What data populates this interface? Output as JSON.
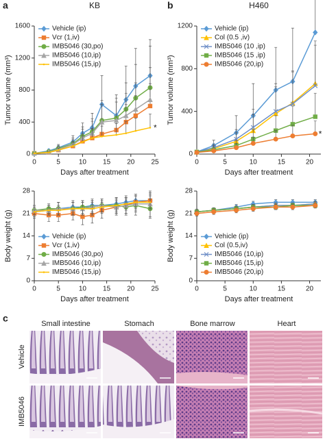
{
  "chart_data": [
    {
      "type": "line",
      "title": "KB",
      "xlabel": "Days after treatment",
      "ylabel": "Tumor volume (mm³)",
      "x": [
        0,
        3,
        5,
        8,
        10,
        12,
        14,
        17,
        19,
        21,
        24
      ],
      "xlim": [
        0,
        25
      ],
      "xticks": [
        0,
        5,
        10,
        15,
        20,
        25
      ],
      "ylim": [
        0,
        1600
      ],
      "yticks": [
        0,
        400,
        800,
        1200,
        1600
      ],
      "legend": "upper left",
      "error_bars": "upper",
      "annotation": "*",
      "series": [
        {
          "name": "Vehicle (ip)",
          "color": "#5b9bd5",
          "marker": "diamond",
          "values": [
            10,
            40,
            80,
            150,
            260,
            330,
            620,
            480,
            680,
            850,
            980
          ],
          "errors": [
            5,
            20,
            40,
            80,
            130,
            180,
            360,
            260,
            420,
            470,
            450
          ]
        },
        {
          "name": "Vcr (1,iv)",
          "color": "#ed7d31",
          "marker": "square",
          "values": [
            10,
            20,
            50,
            100,
            160,
            200,
            250,
            300,
            400,
            480,
            600
          ],
          "errors": [
            5,
            10,
            30,
            60,
            90,
            120,
            150,
            170,
            220,
            250,
            280
          ]
        },
        {
          "name": "IMB5046 (30,po)",
          "color": "#70ad47",
          "marker": "circle",
          "values": [
            10,
            30,
            70,
            130,
            220,
            280,
            420,
            450,
            560,
            700,
            830
          ],
          "errors": [
            5,
            15,
            35,
            70,
            120,
            160,
            250,
            250,
            330,
            420,
            520
          ]
        },
        {
          "name": "IMB5046 (10,ip)",
          "color": "#a5a5a5",
          "marker": "triangle",
          "values": [
            10,
            25,
            60,
            120,
            200,
            260,
            400,
            420,
            480,
            560,
            680
          ],
          "errors": [
            5,
            12,
            30,
            60,
            110,
            150,
            220,
            230,
            280,
            330,
            400
          ]
        },
        {
          "name": "IMB5046 (15,ip)",
          "color": "#ffc000",
          "marker": "none",
          "values": [
            10,
            20,
            50,
            100,
            150,
            200,
            220,
            240,
            260,
            290,
            330
          ],
          "errors": [
            5,
            10,
            25,
            50,
            80,
            110,
            130,
            140,
            150,
            160,
            170
          ]
        }
      ]
    },
    {
      "type": "line",
      "title": "H460",
      "xlabel": "Days after treatment",
      "ylabel": "Tumor volume (mm³)",
      "x": [
        0,
        3,
        7,
        10,
        14,
        17,
        21
      ],
      "xlim": [
        0,
        22
      ],
      "xticks": [
        0,
        5,
        10,
        15,
        20
      ],
      "ylim": [
        0,
        1200
      ],
      "yticks": [
        0,
        400,
        800,
        1200
      ],
      "legend": "upper left",
      "error_bars": "upper",
      "annotation": "*",
      "series": [
        {
          "name": "Vehicle (ip)",
          "color": "#5b9bd5",
          "marker": "diamond",
          "values": [
            20,
            80,
            200,
            360,
            600,
            680,
            1140
          ],
          "errors": [
            10,
            50,
            160,
            300,
            400,
            500,
            620
          ]
        },
        {
          "name": "Col (0.5 ,iv)",
          "color": "#ffc000",
          "marker": "triangle",
          "values": [
            20,
            50,
            120,
            220,
            380,
            480,
            660
          ],
          "errors": [
            10,
            30,
            80,
            150,
            250,
            300,
            400
          ]
        },
        {
          "name": "IMB5046 (10 ,ip)",
          "color": "#6f8fc7",
          "marker": "x",
          "values": [
            20,
            60,
            140,
            250,
            400,
            470,
            640
          ],
          "errors": [
            10,
            35,
            90,
            170,
            260,
            300,
            380
          ]
        },
        {
          "name": "IMB5046 (15 ,ip)",
          "color": "#70ad47",
          "marker": "square",
          "values": [
            20,
            40,
            80,
            140,
            220,
            280,
            350
          ],
          "errors": [
            10,
            25,
            50,
            90,
            140,
            170,
            220
          ]
        },
        {
          "name": "IMB5046 (20,ip)",
          "color": "#ed7d31",
          "marker": "circle",
          "values": [
            15,
            30,
            60,
            100,
            140,
            170,
            190
          ],
          "errors": [
            8,
            20,
            40,
            60,
            80,
            100,
            120
          ]
        }
      ]
    },
    {
      "type": "line",
      "xlabel": "Days after treatment",
      "ylabel": "Body weight (g)",
      "x": [
        0,
        3,
        5,
        8,
        10,
        12,
        14,
        17,
        19,
        21,
        24
      ],
      "xlim": [
        0,
        25
      ],
      "xticks": [
        0,
        5,
        10,
        15,
        20,
        25
      ],
      "ylim": [
        0,
        28
      ],
      "yticks": [
        0,
        7,
        14,
        21,
        28
      ],
      "legend": "lower left",
      "error_bars": "both",
      "series": [
        {
          "name": "Vehicle (ip)",
          "color": "#5b9bd5",
          "marker": "diamond",
          "values": [
            21.5,
            22,
            22.5,
            23,
            23,
            23.5,
            23.5,
            24,
            24.5,
            25,
            25
          ],
          "errors": [
            1.5,
            1.5,
            2,
            2,
            2,
            2,
            2,
            2,
            2,
            2,
            2
          ]
        },
        {
          "name": "Vcr (1,iv)",
          "color": "#ed7d31",
          "marker": "square",
          "values": [
            21,
            20.5,
            20.5,
            21,
            20,
            20.5,
            22,
            23,
            23.5,
            24.5,
            25
          ],
          "errors": [
            1.5,
            2,
            2,
            2,
            2.5,
            2.5,
            2.5,
            2.5,
            2.5,
            2.5,
            2.5
          ]
        },
        {
          "name": "IMB5046 (30,po)",
          "color": "#70ad47",
          "marker": "circle",
          "values": [
            22,
            22.5,
            22.5,
            22.5,
            23,
            23,
            23.5,
            23.5,
            23,
            23.5,
            22.5
          ],
          "errors": [
            1.5,
            1.5,
            2,
            2,
            2,
            2,
            2,
            2.5,
            2.5,
            3,
            3
          ]
        },
        {
          "name": "IMB5046 (10,ip)",
          "color": "#a5a5a5",
          "marker": "triangle",
          "values": [
            22,
            22,
            22.5,
            22.5,
            22.5,
            23,
            23.5,
            23,
            23.5,
            24,
            24
          ],
          "errors": [
            1.5,
            1.5,
            2,
            2,
            2,
            2,
            2,
            2,
            2.5,
            2.5,
            4
          ]
        },
        {
          "name": "IMB5046 (15,ip)",
          "color": "#ffc000",
          "marker": "none",
          "values": [
            21.5,
            22,
            22,
            22.5,
            22.5,
            22.5,
            23,
            23.5,
            24,
            24.5,
            24.5
          ],
          "errors": [
            1.5,
            1.5,
            1.5,
            2,
            2,
            2,
            2,
            2,
            2,
            2,
            2
          ]
        }
      ]
    },
    {
      "type": "line",
      "xlabel": "Days after treatment",
      "ylabel": "Body weight (g)",
      "x": [
        0,
        3,
        7,
        10,
        14,
        17,
        21
      ],
      "xlim": [
        0,
        22
      ],
      "xticks": [
        0,
        5,
        10,
        15,
        20
      ],
      "ylim": [
        0,
        28
      ],
      "yticks": [
        0,
        7,
        14,
        21,
        28
      ],
      "legend": "lower left",
      "error_bars": "both",
      "series": [
        {
          "name": "Vehicle (ip)",
          "color": "#5b9bd5",
          "marker": "diamond",
          "values": [
            21.5,
            22,
            23,
            24,
            24.5,
            24.5,
            24.5
          ],
          "errors": [
            0.8,
            0.8,
            0.8,
            0.8,
            0.8,
            0.8,
            0.8
          ]
        },
        {
          "name": "Col (0.5,iv)",
          "color": "#ffc000",
          "marker": "triangle",
          "values": [
            21.5,
            22,
            22.5,
            23,
            23.5,
            23.5,
            24
          ],
          "errors": [
            0.8,
            0.8,
            0.8,
            0.8,
            0.8,
            0.8,
            0.8
          ]
        },
        {
          "name": "IMB5046 (10,ip)",
          "color": "#6f8fc7",
          "marker": "x",
          "values": [
            21.5,
            22,
            22.5,
            23,
            23.5,
            23.5,
            24
          ],
          "errors": [
            0.8,
            0.8,
            0.8,
            0.8,
            0.8,
            0.8,
            0.8
          ]
        },
        {
          "name": "IMB5046 (15,ip)",
          "color": "#70ad47",
          "marker": "square",
          "values": [
            21.5,
            22,
            22.5,
            23,
            23,
            23.5,
            23.5
          ],
          "errors": [
            0.8,
            0.8,
            0.8,
            0.8,
            0.8,
            0.8,
            0.8
          ]
        },
        {
          "name": "IMB5046 (20,ip)",
          "color": "#ed7d31",
          "marker": "circle",
          "values": [
            21,
            21.5,
            22,
            22.5,
            23,
            23,
            23.5
          ],
          "errors": [
            0.8,
            0.8,
            0.8,
            0.8,
            0.8,
            0.8,
            0.8
          ]
        }
      ]
    }
  ],
  "figure": {
    "panel_labels": [
      "a",
      "b",
      "c"
    ],
    "histology": {
      "columns": [
        "Small intestine",
        "Stomach",
        "Bone marrow",
        "Heart"
      ],
      "rows": [
        "Vehicle",
        "IMB5046"
      ]
    }
  }
}
